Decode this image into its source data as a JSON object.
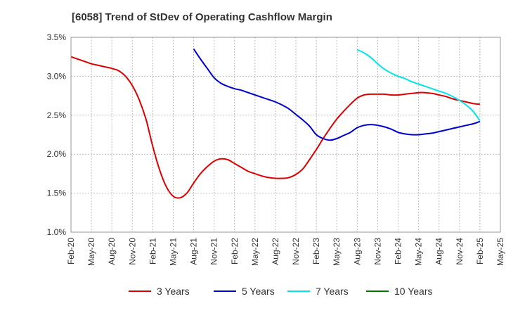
{
  "chart_data": {
    "type": "line",
    "title": "[6058]  Trend of StDev of Operating Cashflow Margin",
    "xlabel": "",
    "ylabel": "",
    "ylim": [
      1.0,
      3.5
    ],
    "yticks": [
      "1.0%",
      "1.5%",
      "2.0%",
      "2.5%",
      "3.0%",
      "3.5%"
    ],
    "ytick_values": [
      1.0,
      1.5,
      2.0,
      2.5,
      3.0,
      3.5
    ],
    "xticks": [
      "Feb-20",
      "May-20",
      "Aug-20",
      "Nov-20",
      "Feb-21",
      "May-21",
      "Aug-21",
      "Nov-21",
      "Feb-22",
      "May-22",
      "Aug-22",
      "Nov-22",
      "Feb-23",
      "May-23",
      "Aug-23",
      "Nov-23",
      "Feb-24",
      "May-24",
      "Aug-24",
      "Nov-24",
      "Feb-25",
      "May-25"
    ],
    "grid": true,
    "legend_position": "bottom",
    "series": [
      {
        "name": "3 Years",
        "color": "#dd0000",
        "points": [
          [
            "Feb-20",
            3.25
          ],
          [
            "Mar-20",
            3.22
          ],
          [
            "Apr-20",
            3.19
          ],
          [
            "May-20",
            3.16
          ],
          [
            "Jun-20",
            3.14
          ],
          [
            "Jul-20",
            3.12
          ],
          [
            "Aug-20",
            3.1
          ],
          [
            "Sep-20",
            3.07
          ],
          [
            "Oct-20",
            3.0
          ],
          [
            "Nov-20",
            2.88
          ],
          [
            "Dec-20",
            2.7
          ],
          [
            "Jan-21",
            2.45
          ],
          [
            "Feb-21",
            2.1
          ],
          [
            "Mar-21",
            1.8
          ],
          [
            "Apr-21",
            1.58
          ],
          [
            "May-21",
            1.46
          ],
          [
            "Jun-21",
            1.44
          ],
          [
            "Jul-21",
            1.5
          ],
          [
            "Aug-21",
            1.63
          ],
          [
            "Sep-21",
            1.75
          ],
          [
            "Oct-21",
            1.84
          ],
          [
            "Nov-21",
            1.91
          ],
          [
            "Dec-21",
            1.94
          ],
          [
            "Jan-22",
            1.93
          ],
          [
            "Feb-22",
            1.88
          ],
          [
            "Mar-22",
            1.83
          ],
          [
            "Apr-22",
            1.78
          ],
          [
            "May-22",
            1.75
          ],
          [
            "Jun-22",
            1.72
          ],
          [
            "Jul-22",
            1.7
          ],
          [
            "Aug-22",
            1.69
          ],
          [
            "Sep-22",
            1.69
          ],
          [
            "Oct-22",
            1.7
          ],
          [
            "Nov-22",
            1.74
          ],
          [
            "Dec-22",
            1.81
          ],
          [
            "Jan-23",
            1.93
          ],
          [
            "Feb-23",
            2.06
          ],
          [
            "Mar-23",
            2.2
          ],
          [
            "Apr-23",
            2.33
          ],
          [
            "May-23",
            2.45
          ],
          [
            "Jun-23",
            2.55
          ],
          [
            "Jul-23",
            2.64
          ],
          [
            "Aug-23",
            2.72
          ],
          [
            "Sep-23",
            2.76
          ],
          [
            "Oct-23",
            2.77
          ],
          [
            "Nov-23",
            2.77
          ],
          [
            "Dec-23",
            2.77
          ],
          [
            "Jan-24",
            2.76
          ],
          [
            "Feb-24",
            2.76
          ],
          [
            "Mar-24",
            2.77
          ],
          [
            "Apr-24",
            2.78
          ],
          [
            "May-24",
            2.79
          ],
          [
            "Jun-24",
            2.79
          ],
          [
            "Jul-24",
            2.78
          ],
          [
            "Aug-24",
            2.76
          ],
          [
            "Sep-24",
            2.74
          ],
          [
            "Oct-24",
            2.71
          ],
          [
            "Nov-24",
            2.69
          ],
          [
            "Dec-24",
            2.67
          ],
          [
            "Jan-25",
            2.65
          ],
          [
            "Feb-25",
            2.64
          ]
        ]
      },
      {
        "name": "5 Years",
        "color": "#0000cc",
        "points": [
          [
            "Aug-21",
            3.35
          ],
          [
            "Sep-21",
            3.22
          ],
          [
            "Oct-21",
            3.1
          ],
          [
            "Nov-21",
            2.98
          ],
          [
            "Dec-21",
            2.91
          ],
          [
            "Jan-22",
            2.87
          ],
          [
            "Feb-22",
            2.84
          ],
          [
            "Mar-22",
            2.82
          ],
          [
            "Apr-22",
            2.79
          ],
          [
            "May-22",
            2.76
          ],
          [
            "Jun-22",
            2.73
          ],
          [
            "Jul-22",
            2.7
          ],
          [
            "Aug-22",
            2.67
          ],
          [
            "Sep-22",
            2.63
          ],
          [
            "Oct-22",
            2.58
          ],
          [
            "Nov-22",
            2.51
          ],
          [
            "Dec-22",
            2.44
          ],
          [
            "Jan-23",
            2.36
          ],
          [
            "Feb-23",
            2.25
          ],
          [
            "Mar-23",
            2.2
          ],
          [
            "Apr-23",
            2.18
          ],
          [
            "May-23",
            2.2
          ],
          [
            "Jun-23",
            2.24
          ],
          [
            "Jul-23",
            2.28
          ],
          [
            "Aug-23",
            2.34
          ],
          [
            "Sep-23",
            2.37
          ],
          [
            "Oct-23",
            2.38
          ],
          [
            "Nov-23",
            2.37
          ],
          [
            "Dec-23",
            2.35
          ],
          [
            "Jan-24",
            2.32
          ],
          [
            "Feb-24",
            2.28
          ],
          [
            "Mar-24",
            2.26
          ],
          [
            "Apr-24",
            2.25
          ],
          [
            "May-24",
            2.25
          ],
          [
            "Jun-24",
            2.26
          ],
          [
            "Jul-24",
            2.27
          ],
          [
            "Aug-24",
            2.29
          ],
          [
            "Sep-24",
            2.31
          ],
          [
            "Oct-24",
            2.33
          ],
          [
            "Nov-24",
            2.35
          ],
          [
            "Dec-24",
            2.37
          ],
          [
            "Jan-25",
            2.39
          ],
          [
            "Feb-25",
            2.42
          ]
        ]
      },
      {
        "name": "7 Years",
        "color": "#00e5e5",
        "points": [
          [
            "Aug-23",
            3.34
          ],
          [
            "Sep-23",
            3.3
          ],
          [
            "Oct-23",
            3.24
          ],
          [
            "Nov-23",
            3.16
          ],
          [
            "Dec-23",
            3.09
          ],
          [
            "Jan-24",
            3.04
          ],
          [
            "Feb-24",
            3.0
          ],
          [
            "Mar-24",
            2.97
          ],
          [
            "Apr-24",
            2.93
          ],
          [
            "May-24",
            2.9
          ],
          [
            "Jun-24",
            2.87
          ],
          [
            "Jul-24",
            2.84
          ],
          [
            "Aug-24",
            2.81
          ],
          [
            "Sep-24",
            2.78
          ],
          [
            "Oct-24",
            2.74
          ],
          [
            "Nov-24",
            2.69
          ],
          [
            "Dec-24",
            2.63
          ],
          [
            "Jan-25",
            2.55
          ],
          [
            "Feb-25",
            2.43
          ]
        ]
      },
      {
        "name": "10 Years",
        "color": "#007700",
        "points": []
      }
    ]
  }
}
